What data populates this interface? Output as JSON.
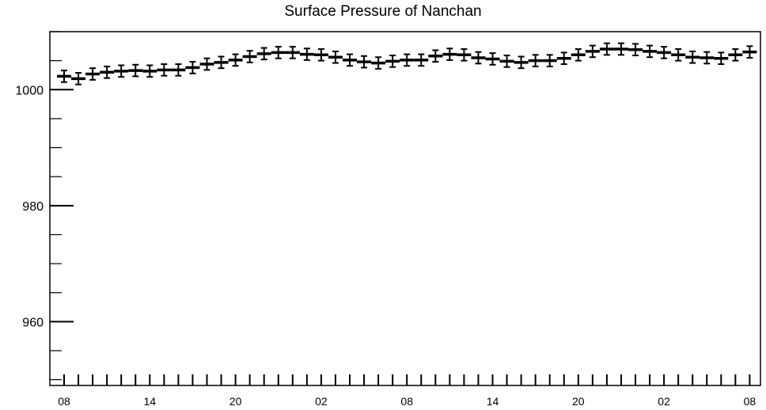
{
  "chart_data": {
    "type": "scatter",
    "title": "Surface Pressure of Nanchan",
    "xlabel": "",
    "ylabel": "",
    "ylim": [
      949,
      1010
    ],
    "grid": false,
    "y_ticks": [
      960,
      980,
      1000
    ],
    "y_tick_labels": [
      "960",
      "980",
      "1000"
    ],
    "x_tick_labels": [
      "08",
      "14",
      "20",
      "02",
      "08",
      "14",
      "20",
      "02",
      "08"
    ],
    "x_tick_every": 6,
    "x_unit": "hour",
    "error_bar": 1.0,
    "series": [
      {
        "values": [
          1002.3,
          1001.9,
          1002.7,
          1003.0,
          1003.2,
          1003.3,
          1003.2,
          1003.4,
          1003.4,
          1003.8,
          1004.4,
          1004.7,
          1005.1,
          1005.7,
          1006.2,
          1006.4,
          1006.4,
          1006.1,
          1006.0,
          1005.6,
          1005.1,
          1004.8,
          1004.6,
          1004.9,
          1005.1,
          1005.1,
          1005.8,
          1006.1,
          1006.0,
          1005.5,
          1005.3,
          1004.9,
          1004.7,
          1005.0,
          1005.0,
          1005.4,
          1006.0,
          1006.6,
          1007.0,
          1007.0,
          1006.9,
          1006.6,
          1006.4,
          1006.0,
          1005.6,
          1005.5,
          1005.4,
          1006.0,
          1006.5
        ]
      }
    ]
  }
}
